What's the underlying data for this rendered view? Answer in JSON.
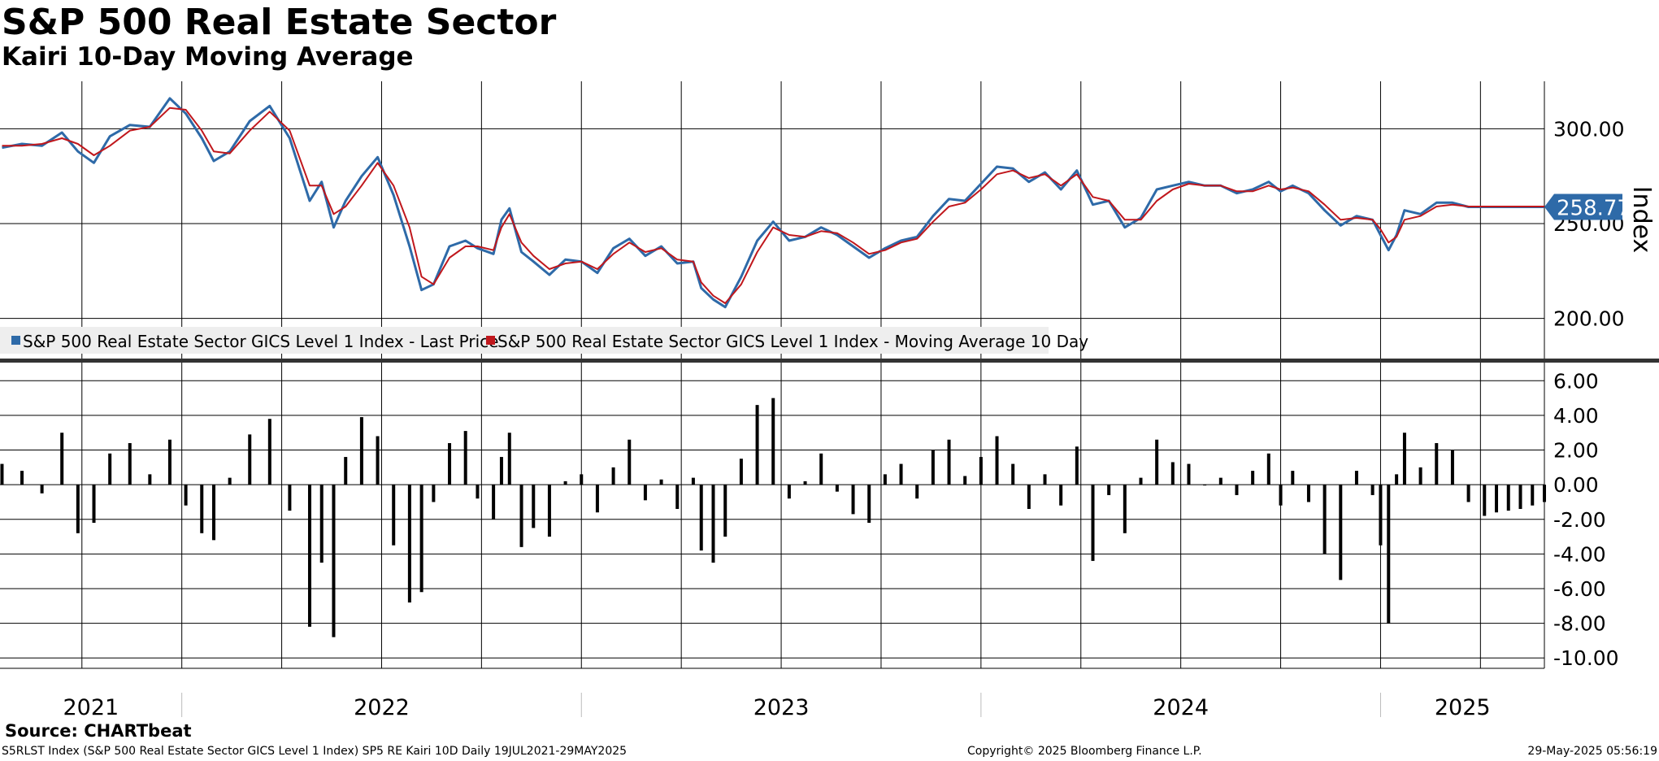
{
  "title": "S&P 500 Real Estate Sector",
  "subtitle": "Kairi 10-Day Moving Average",
  "source": "Source: CHARTbeat",
  "footer": {
    "left": "S5RLST Index (S&P 500 Real Estate Sector GICS Level 1 Index) SP5 RE Kairi 10D  Daily 19JUL2021-29MAY2025",
    "center": "Copyright© 2025 Bloomberg Finance L.P.",
    "right": "29-May-2025 05:56:19"
  },
  "colors": {
    "last_price": "#2e6aa8",
    "moving_average": "#c0171c",
    "kairi_bars": "#000000",
    "badge": "#2e6aa8"
  },
  "chart_data": [
    {
      "type": "line",
      "panel": "top",
      "ylabel": "Index",
      "ylim": [
        178,
        325
      ],
      "yticks": [
        "300.00",
        "250.00",
        "200.00"
      ],
      "ytick_values": [
        300,
        250,
        200
      ],
      "last_value_label": "258.77",
      "last_value": 258.77,
      "legend": [
        "S&P 500 Real Estate Sector GICS Level 1 Index - Last Price",
        "S&P 500 Real Estate Sector GICS Level 1 Index - Moving Average 10 Day"
      ],
      "x_range": [
        2021.545,
        2025.41
      ],
      "series": [
        {
          "name": "S&P 500 Real Estate Sector GICS Level 1 Index - Last Price",
          "x": [
            2021.55,
            2021.6,
            2021.65,
            2021.7,
            2021.74,
            2021.78,
            2021.82,
            2021.87,
            2021.92,
            2021.97,
            2022.01,
            2022.05,
            2022.08,
            2022.12,
            2022.17,
            2022.22,
            2022.27,
            2022.32,
            2022.35,
            2022.38,
            2022.41,
            2022.45,
            2022.49,
            2022.53,
            2022.57,
            2022.6,
            2022.63,
            2022.67,
            2022.71,
            2022.74,
            2022.78,
            2022.8,
            2022.82,
            2022.85,
            2022.88,
            2022.92,
            2022.96,
            2023.0,
            2023.04,
            2023.08,
            2023.12,
            2023.16,
            2023.2,
            2023.24,
            2023.28,
            2023.3,
            2023.33,
            2023.36,
            2023.4,
            2023.44,
            2023.48,
            2023.52,
            2023.56,
            2023.6,
            2023.64,
            2023.68,
            2023.72,
            2023.76,
            2023.8,
            2023.84,
            2023.88,
            2023.92,
            2023.96,
            2024.0,
            2024.04,
            2024.08,
            2024.12,
            2024.16,
            2024.2,
            2024.24,
            2024.28,
            2024.32,
            2024.36,
            2024.4,
            2024.44,
            2024.48,
            2024.52,
            2024.56,
            2024.6,
            2024.64,
            2024.68,
            2024.72,
            2024.75,
            2024.78,
            2024.82,
            2024.86,
            2024.9,
            2024.94,
            2024.98,
            2025.0,
            2025.02,
            2025.04,
            2025.06,
            2025.1,
            2025.14,
            2025.18,
            2025.22,
            2025.26,
            2025.29,
            2025.32,
            2025.35,
            2025.38,
            2025.41
          ],
          "y": [
            290,
            292,
            291,
            298,
            288,
            282,
            296,
            302,
            301,
            316,
            308,
            295,
            283,
            288,
            304,
            312,
            295,
            262,
            272,
            248,
            262,
            275,
            285,
            265,
            238,
            215,
            218,
            238,
            241,
            237,
            234,
            252,
            258,
            235,
            230,
            223,
            231,
            230,
            224,
            237,
            242,
            233,
            238,
            229,
            230,
            216,
            210,
            206,
            222,
            241,
            251,
            241,
            243,
            248,
            244,
            238,
            232,
            237,
            241,
            243,
            254,
            263,
            262,
            271,
            280,
            279,
            272,
            277,
            268,
            278,
            260,
            262,
            248,
            253,
            268,
            270,
            272,
            270,
            270,
            266,
            268,
            272,
            267,
            270,
            266,
            257,
            249,
            254,
            252,
            244,
            236,
            244,
            257,
            255,
            261,
            261,
            258.77,
            258.77,
            258.77,
            258.77,
            258.77,
            258.77,
            258.77
          ]
        },
        {
          "name": "S&P 500 Real Estate Sector GICS Level 1 Index - Moving Average 10 Day",
          "x": [
            2021.55,
            2021.6,
            2021.65,
            2021.7,
            2021.74,
            2021.78,
            2021.82,
            2021.87,
            2021.92,
            2021.97,
            2022.01,
            2022.05,
            2022.08,
            2022.12,
            2022.17,
            2022.22,
            2022.27,
            2022.32,
            2022.35,
            2022.38,
            2022.41,
            2022.45,
            2022.49,
            2022.53,
            2022.57,
            2022.6,
            2022.63,
            2022.67,
            2022.71,
            2022.74,
            2022.78,
            2022.8,
            2022.82,
            2022.85,
            2022.88,
            2022.92,
            2022.96,
            2023.0,
            2023.04,
            2023.08,
            2023.12,
            2023.16,
            2023.2,
            2023.24,
            2023.28,
            2023.3,
            2023.33,
            2023.36,
            2023.4,
            2023.44,
            2023.48,
            2023.52,
            2023.56,
            2023.6,
            2023.64,
            2023.68,
            2023.72,
            2023.76,
            2023.8,
            2023.84,
            2023.88,
            2023.92,
            2023.96,
            2024.0,
            2024.04,
            2024.08,
            2024.12,
            2024.16,
            2024.2,
            2024.24,
            2024.28,
            2024.32,
            2024.36,
            2024.4,
            2024.44,
            2024.48,
            2024.52,
            2024.56,
            2024.6,
            2024.64,
            2024.68,
            2024.72,
            2024.75,
            2024.78,
            2024.82,
            2024.86,
            2024.9,
            2024.94,
            2024.98,
            2025.0,
            2025.02,
            2025.04,
            2025.06,
            2025.1,
            2025.14,
            2025.18,
            2025.22,
            2025.26,
            2025.29,
            2025.32,
            2025.35,
            2025.38,
            2025.41
          ],
          "y": [
            291,
            291,
            292,
            295,
            292,
            286,
            291,
            299,
            301,
            311,
            310,
            299,
            288,
            287,
            299,
            309,
            299,
            270,
            270,
            255,
            259,
            270,
            282,
            270,
            248,
            222,
            218,
            232,
            238,
            238,
            236,
            248,
            255,
            240,
            233,
            226,
            229,
            230,
            226,
            234,
            240,
            235,
            237,
            231,
            230,
            219,
            212,
            208,
            218,
            235,
            248,
            244,
            243,
            246,
            245,
            240,
            234,
            236,
            240,
            242,
            251,
            259,
            261,
            268,
            276,
            278,
            274,
            276,
            270,
            276,
            264,
            262,
            252,
            252,
            262,
            268,
            271,
            270,
            270,
            267,
            267,
            270,
            268,
            269,
            267,
            260,
            252,
            253,
            252,
            247,
            240,
            243,
            252,
            254,
            259,
            260,
            259,
            259,
            259,
            259,
            259,
            259,
            259
          ]
        }
      ]
    },
    {
      "type": "bar",
      "panel": "bottom",
      "ylim": [
        -10.6,
        7.0
      ],
      "yticks": [
        "6.00",
        "4.00",
        "2.00",
        "0.00",
        "-2.00",
        "-4.00",
        "-6.00",
        "-8.00",
        "-10.00"
      ],
      "ytick_values": [
        6,
        4,
        2,
        0,
        -2,
        -4,
        -6,
        -8,
        -10
      ],
      "x_range": [
        2021.545,
        2025.41
      ],
      "xticks": [
        "2021",
        "2022",
        "2023",
        "2024",
        "2025"
      ],
      "xtick_positions": [
        2021.5,
        2022.0,
        2023.0,
        2024.0,
        2025.0
      ],
      "x": [
        2021.55,
        2021.6,
        2021.65,
        2021.7,
        2021.74,
        2021.78,
        2021.82,
        2021.87,
        2021.92,
        2021.97,
        2022.01,
        2022.05,
        2022.08,
        2022.12,
        2022.17,
        2022.22,
        2022.27,
        2022.32,
        2022.35,
        2022.38,
        2022.41,
        2022.45,
        2022.49,
        2022.53,
        2022.57,
        2022.6,
        2022.63,
        2022.67,
        2022.71,
        2022.74,
        2022.78,
        2022.8,
        2022.82,
        2022.85,
        2022.88,
        2022.92,
        2022.96,
        2023.0,
        2023.04,
        2023.08,
        2023.12,
        2023.16,
        2023.2,
        2023.24,
        2023.28,
        2023.3,
        2023.33,
        2023.36,
        2023.4,
        2023.44,
        2023.48,
        2023.52,
        2023.56,
        2023.6,
        2023.64,
        2023.68,
        2023.72,
        2023.76,
        2023.8,
        2023.84,
        2023.88,
        2023.92,
        2023.96,
        2024.0,
        2024.04,
        2024.08,
        2024.12,
        2024.16,
        2024.2,
        2024.24,
        2024.28,
        2024.32,
        2024.36,
        2024.4,
        2024.44,
        2024.48,
        2024.52,
        2024.56,
        2024.6,
        2024.64,
        2024.68,
        2024.72,
        2024.75,
        2024.78,
        2024.82,
        2024.86,
        2024.9,
        2024.94,
        2024.98,
        2025.0,
        2025.02,
        2025.04,
        2025.06,
        2025.1,
        2025.14,
        2025.18,
        2025.22,
        2025.26,
        2025.29,
        2025.32,
        2025.35,
        2025.38,
        2025.41
      ],
      "values": [
        1.2,
        0.8,
        -0.5,
        3.0,
        -2.8,
        -2.2,
        1.8,
        2.4,
        0.6,
        2.6,
        -1.2,
        -2.8,
        -3.2,
        0.4,
        2.9,
        3.8,
        -1.5,
        -8.2,
        -4.5,
        -8.8,
        1.6,
        3.9,
        2.8,
        -3.5,
        -6.8,
        -6.2,
        -1.0,
        2.4,
        3.1,
        -0.8,
        -2.0,
        1.6,
        3.0,
        -3.6,
        -2.5,
        -3.0,
        0.2,
        0.6,
        -1.6,
        1.0,
        2.6,
        -0.9,
        0.3,
        -1.4,
        0.4,
        -3.8,
        -4.5,
        -3.0,
        1.5,
        4.6,
        5.0,
        -0.8,
        0.2,
        1.8,
        -0.4,
        -1.7,
        -2.2,
        0.6,
        1.2,
        -0.8,
        2.0,
        2.6,
        0.5,
        1.6,
        2.8,
        1.2,
        -1.4,
        0.6,
        -1.2,
        2.2,
        -4.4,
        -0.6,
        -2.8,
        0.4,
        2.6,
        1.3,
        1.2,
        0.0,
        0.4,
        -0.6,
        0.8,
        1.8,
        -1.2,
        0.8,
        -1.0,
        -4.0,
        -5.5,
        0.8,
        -0.6,
        -3.5,
        -8.0,
        0.6,
        3.0,
        1.0,
        2.4,
        2.0,
        -1.0,
        -1.8,
        -1.6,
        -1.5,
        -1.4,
        -1.2,
        -1.0
      ]
    }
  ]
}
